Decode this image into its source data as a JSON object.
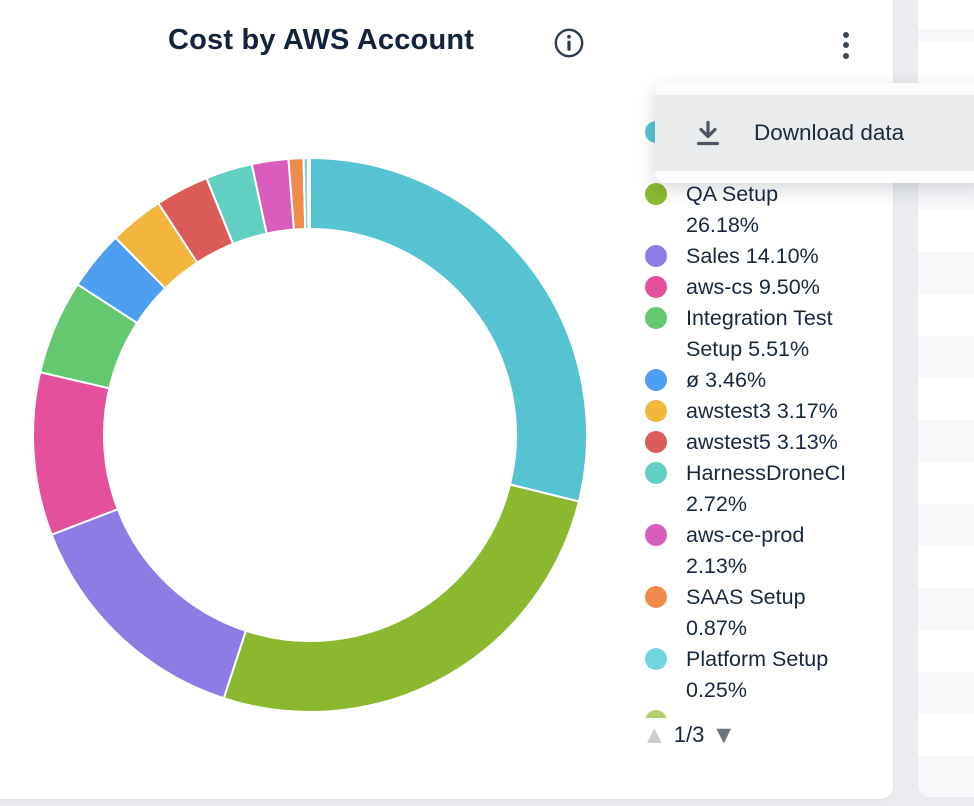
{
  "header": {
    "title": "Cost by AWS Account",
    "info_icon": "info-circle-icon",
    "menu_icon": "kebab-vertical-icon"
  },
  "menu": {
    "items": [
      {
        "icon": "download-icon",
        "label": "Download data"
      }
    ]
  },
  "chart_data": {
    "type": "pie",
    "variant": "donut",
    "title": "Cost by AWS Account",
    "legend_position": "right",
    "legend_page": "1/3",
    "segments": [
      {
        "label": "",
        "pct": 28.86,
        "color": "#56c3d3",
        "label_obscured_by_menu": true
      },
      {
        "label": "QA Setup",
        "pct": 26.18,
        "color": "#8cb830"
      },
      {
        "label": "Sales",
        "pct": 14.1,
        "color": "#8c7ce4"
      },
      {
        "label": "aws-cs",
        "pct": 9.5,
        "color": "#e4509c"
      },
      {
        "label": "Integration Test Setup",
        "pct": 5.51,
        "color": "#64c86e"
      },
      {
        "label": "ø",
        "pct": 3.46,
        "color": "#4d9df0"
      },
      {
        "label": "awstest3",
        "pct": 3.17,
        "color": "#f2b53d"
      },
      {
        "label": "awstest5",
        "pct": 3.13,
        "color": "#da5b57"
      },
      {
        "label": "HarnessDroneCI",
        "pct": 2.72,
        "color": "#61cfc2"
      },
      {
        "label": "aws-ce-prod",
        "pct": 2.13,
        "color": "#da5cbb"
      },
      {
        "label": "SAAS Setup",
        "pct": 0.87,
        "color": "#ee8d4b"
      },
      {
        "label": "Platform Setup",
        "pct": 0.25,
        "color": "#74d5e2"
      },
      {
        "label": "",
        "pct": 0.12,
        "color": "#b5d16a",
        "label_cut_off": true
      }
    ]
  },
  "legend": {
    "items": [
      {
        "color": "#56c3d3",
        "lines": [
          "",
          ""
        ],
        "obscured": true
      },
      {
        "color": "#8cb830",
        "lines": [
          "QA Setup",
          "26.18%"
        ]
      },
      {
        "color": "#8c7ce4",
        "lines": [
          "Sales 14.10%"
        ]
      },
      {
        "color": "#e4509c",
        "lines": [
          "aws-cs 9.50%"
        ]
      },
      {
        "color": "#64c86e",
        "lines": [
          "Integration Test",
          "Setup 5.51%"
        ]
      },
      {
        "color": "#4d9df0",
        "lines": [
          "ø 3.46%"
        ]
      },
      {
        "color": "#f2b53d",
        "lines": [
          "awstest3 3.17%"
        ]
      },
      {
        "color": "#da5b57",
        "lines": [
          "awstest5 3.13%"
        ]
      },
      {
        "color": "#61cfc2",
        "lines": [
          "HarnessDroneCI",
          "2.72%"
        ]
      },
      {
        "color": "#da5cbb",
        "lines": [
          "aws-ce-prod",
          "2.13%"
        ]
      },
      {
        "color": "#ee8d4b",
        "lines": [
          "SAAS Setup",
          "0.87%"
        ]
      },
      {
        "color": "#74d5e2",
        "lines": [
          "Platform Setup",
          "0.25%"
        ]
      },
      {
        "color": "#b5d16a",
        "lines": [
          ""
        ],
        "cut_off": true
      }
    ],
    "pagination": {
      "label": "1/3",
      "up_glyph": "▲",
      "down_glyph": "▼"
    }
  },
  "colors": {
    "text_navy": "#17273f",
    "page_bg": "#eaecef",
    "popup_bg": "#fcfcfd",
    "menu_row_bg": "#e9ebed",
    "icon_gray": "#4c5662",
    "pager_up_disabled": "#c9ccd0",
    "pager_down_active": "#6d737a"
  }
}
